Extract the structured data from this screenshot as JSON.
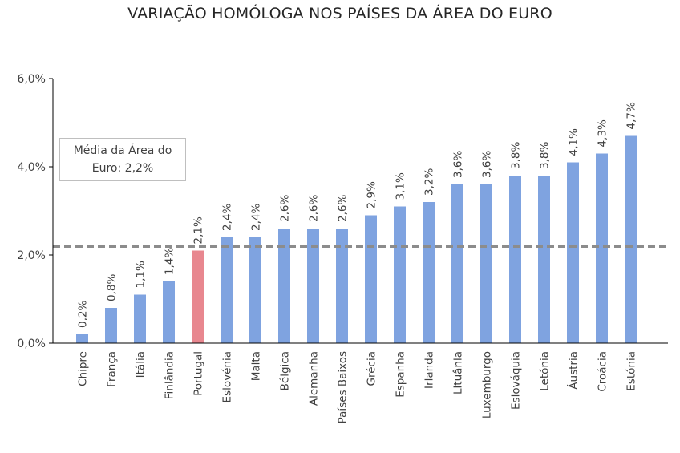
{
  "chart_data": {
    "type": "bar",
    "title": "VARIAÇÃO HOMÓLOGA NOS PAÍSES DA ÁREA DO EURO",
    "xlabel": "",
    "ylabel": "",
    "ylim": [
      0,
      6
    ],
    "yticks": [
      0,
      2,
      4,
      6
    ],
    "ytick_labels": [
      "0,0%",
      "2,0%",
      "4,0%",
      "6,0%"
    ],
    "grid": false,
    "categories": [
      "Chipre",
      "França",
      "Itália",
      "Finlândia",
      "Portugal",
      "Eslovénia",
      "Malta",
      "Bélgica",
      "Alemanha",
      "Países Baixos",
      "Grécia",
      "Espanha",
      "Irlanda",
      "Lituânia",
      "Luxemburgo",
      "Eslováquia",
      "Letónia",
      "Áustria",
      "Croácia",
      "Estónia"
    ],
    "values": [
      0.2,
      0.8,
      1.1,
      1.4,
      2.1,
      2.4,
      2.4,
      2.6,
      2.6,
      2.6,
      2.9,
      3.1,
      3.2,
      3.6,
      3.6,
      3.8,
      3.8,
      4.1,
      4.3,
      4.7
    ],
    "value_labels": [
      "0,2%",
      "0,8%",
      "1,1%",
      "1,4%",
      "2,1%",
      "2,4%",
      "2,4%",
      "2,6%",
      "2,6%",
      "2,6%",
      "2,9%",
      "3,1%",
      "3,2%",
      "3,6%",
      "3,6%",
      "3,8%",
      "3,8%",
      "4,1%",
      "4,3%",
      "4,7%"
    ],
    "highlight_category": "Portugal",
    "colors": {
      "bar": "#7fa3e0",
      "highlight": "#e8878f",
      "average_line": "#8c8c8c",
      "axis": "#000000"
    },
    "average": {
      "value": 2.2,
      "label_line1": "Média da Área do",
      "label_line2": "Euro: 2,2%"
    }
  }
}
